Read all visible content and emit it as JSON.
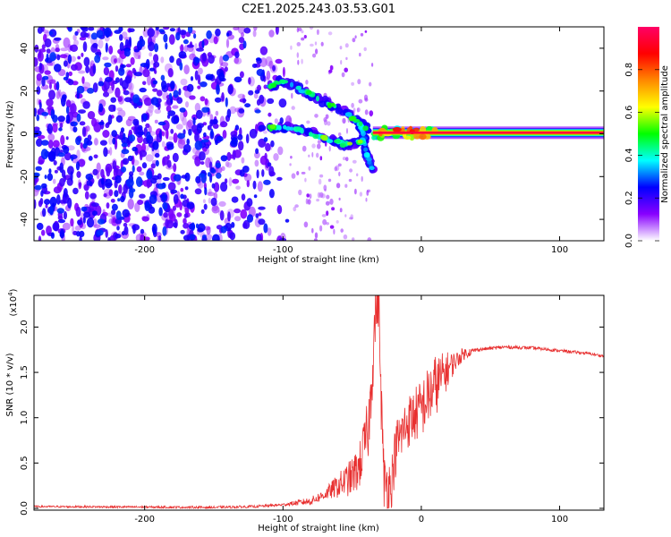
{
  "title": "C2E1.2025.243.03.53.G01",
  "chart_data": [
    {
      "type": "heatmap",
      "xlabel": "Height of straight line (km)",
      "ylabel": "Frequency (Hz)",
      "xlim": [
        -280,
        132
      ],
      "ylim": [
        -50,
        50
      ],
      "xticks": [
        -200,
        -100,
        0,
        100
      ],
      "yticks": [
        -40,
        -20,
        0,
        20,
        40
      ],
      "colorbar": {
        "label": "Normalized spectral amplitude",
        "range": [
          0,
          1
        ],
        "ticks": [
          "0.0",
          "0.2",
          "0.4",
          "0.6",
          "0.8"
        ],
        "tick_values": [
          0.0,
          0.2,
          0.4,
          0.6,
          0.8
        ],
        "colors": [
          "#ffffff",
          "#8800ff",
          "#0000ff",
          "#00ffff",
          "#00ff00",
          "#ffff00",
          "#ff8800",
          "#ff0000",
          "#ff0066"
        ]
      },
      "features": [
        {
          "kind": "noise",
          "x_range": [
            -280,
            -95
          ],
          "y_range": [
            -50,
            50
          ],
          "level": 0.25
        },
        {
          "kind": "branch",
          "points": [
            [
              -110,
              22
            ],
            [
              -100,
              25
            ],
            [
              -85,
              20
            ],
            [
              -70,
              15
            ],
            [
              -55,
              10
            ],
            [
              -45,
              5
            ],
            [
              -38,
              2
            ]
          ],
          "level": 0.4
        },
        {
          "kind": "branch",
          "points": [
            [
              -110,
              3
            ],
            [
              -95,
              3
            ],
            [
              -80,
              0
            ],
            [
              -65,
              -3
            ],
            [
              -55,
              -5
            ],
            [
              -45,
              -4
            ],
            [
              -40,
              -2
            ]
          ],
          "level": 0.45
        },
        {
          "kind": "cusp",
          "points": [
            [
              -45,
              5
            ],
            [
              -42,
              0
            ],
            [
              -40,
              -8
            ],
            [
              -38,
              -12
            ],
            [
              -35,
              -18
            ]
          ],
          "level": 0.3
        },
        {
          "kind": "carrier",
          "x_range": [
            -35,
            132
          ],
          "y": 0.5,
          "level": 0.95
        }
      ]
    },
    {
      "type": "line",
      "xlabel": "Height of straight line (km)",
      "ylabel": "SNR (10 * v/v)",
      "multiplier": "(x10",
      "multiplier_exp": "4",
      "multiplier_close": ")",
      "xlim": [
        -280,
        132
      ],
      "ylim": [
        -0.02,
        2.35
      ],
      "xticks": [
        -200,
        -100,
        0,
        100
      ],
      "yticks": [
        "0.0",
        "0.5",
        "1.0",
        "1.5",
        "2.0"
      ],
      "ytick_values": [
        0.0,
        0.5,
        1.0,
        1.5,
        2.0
      ],
      "color": "#e83030",
      "profile": [
        [
          -280,
          0.02
        ],
        [
          -150,
          0.01
        ],
        [
          -120,
          0.02
        ],
        [
          -100,
          0.04
        ],
        [
          -80,
          0.08
        ],
        [
          -70,
          0.15
        ],
        [
          -60,
          0.25
        ],
        [
          -50,
          0.35
        ],
        [
          -45,
          0.45
        ],
        [
          -38,
          0.9
        ],
        [
          -33,
          2.2
        ],
        [
          -31,
          2.35
        ],
        [
          -29,
          1.2
        ],
        [
          -27,
          0.3
        ],
        [
          -22,
          0.25
        ],
        [
          -18,
          0.7
        ],
        [
          -10,
          0.95
        ],
        [
          0,
          1.1
        ],
        [
          10,
          1.35
        ],
        [
          20,
          1.55
        ],
        [
          30,
          1.7
        ],
        [
          40,
          1.75
        ],
        [
          60,
          1.78
        ],
        [
          80,
          1.77
        ],
        [
          100,
          1.74
        ],
        [
          120,
          1.71
        ],
        [
          132,
          1.68
        ]
      ],
      "noise_amplitude": [
        [
          -280,
          0.01
        ],
        [
          -100,
          0.015
        ],
        [
          -70,
          0.06
        ],
        [
          -45,
          0.25
        ],
        [
          -35,
          0.4
        ],
        [
          -25,
          0.3
        ],
        [
          -10,
          0.3
        ],
        [
          10,
          0.35
        ],
        [
          25,
          0.1
        ],
        [
          40,
          0.02
        ],
        [
          132,
          0.015
        ]
      ]
    }
  ]
}
